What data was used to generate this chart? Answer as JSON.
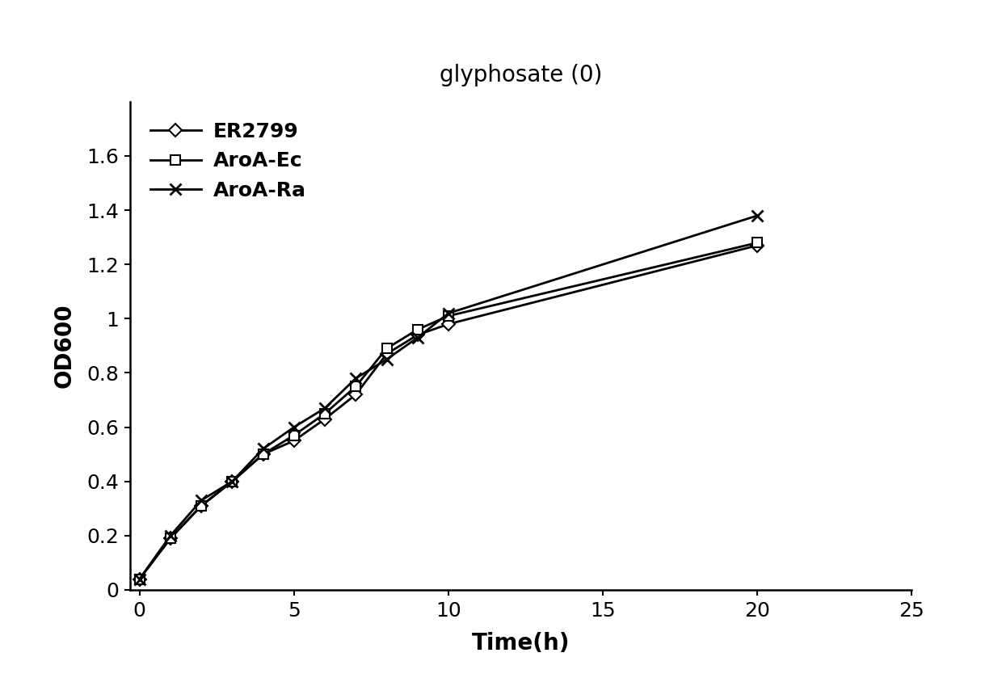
{
  "title": "glyphosate (0)",
  "xlabel": "Time(h)",
  "ylabel": "OD600",
  "xlim": [
    -0.3,
    25
  ],
  "ylim": [
    0,
    1.8
  ],
  "xticks": [
    0,
    5,
    10,
    15,
    20,
    25
  ],
  "yticks": [
    0,
    0.2,
    0.4,
    0.6,
    0.8,
    1.0,
    1.2,
    1.4,
    1.6
  ],
  "series": [
    {
      "label": "ER2799",
      "x": [
        0,
        1,
        2,
        3,
        4,
        5,
        6,
        7,
        8,
        9,
        10,
        20
      ],
      "y": [
        0.04,
        0.19,
        0.31,
        0.4,
        0.5,
        0.55,
        0.63,
        0.72,
        0.87,
        0.94,
        0.98,
        1.27
      ],
      "marker": "D",
      "linestyle": "-",
      "color": "#000000",
      "markersize": 8,
      "linewidth": 2.0,
      "markerfacecolor": "white"
    },
    {
      "label": "AroA-Ec",
      "x": [
        0,
        1,
        2,
        3,
        4,
        5,
        6,
        7,
        8,
        9,
        10,
        20
      ],
      "y": [
        0.04,
        0.19,
        0.31,
        0.4,
        0.5,
        0.57,
        0.65,
        0.75,
        0.89,
        0.96,
        1.01,
        1.28
      ],
      "marker": "s",
      "linestyle": "-",
      "color": "#000000",
      "markersize": 8,
      "linewidth": 2.0,
      "markerfacecolor": "white"
    },
    {
      "label": "AroA-Ra",
      "x": [
        0,
        1,
        2,
        3,
        4,
        5,
        6,
        7,
        8,
        9,
        10,
        20
      ],
      "y": [
        0.04,
        0.2,
        0.33,
        0.4,
        0.52,
        0.6,
        0.67,
        0.78,
        0.85,
        0.93,
        1.02,
        1.38
      ],
      "marker": "x",
      "linestyle": "-",
      "color": "#000000",
      "markersize": 10,
      "linewidth": 2.0,
      "markerfacecolor": "#000000"
    }
  ],
  "background_color": "#ffffff",
  "title_fontsize": 20,
  "label_fontsize": 20,
  "tick_fontsize": 18,
  "legend_fontsize": 18
}
